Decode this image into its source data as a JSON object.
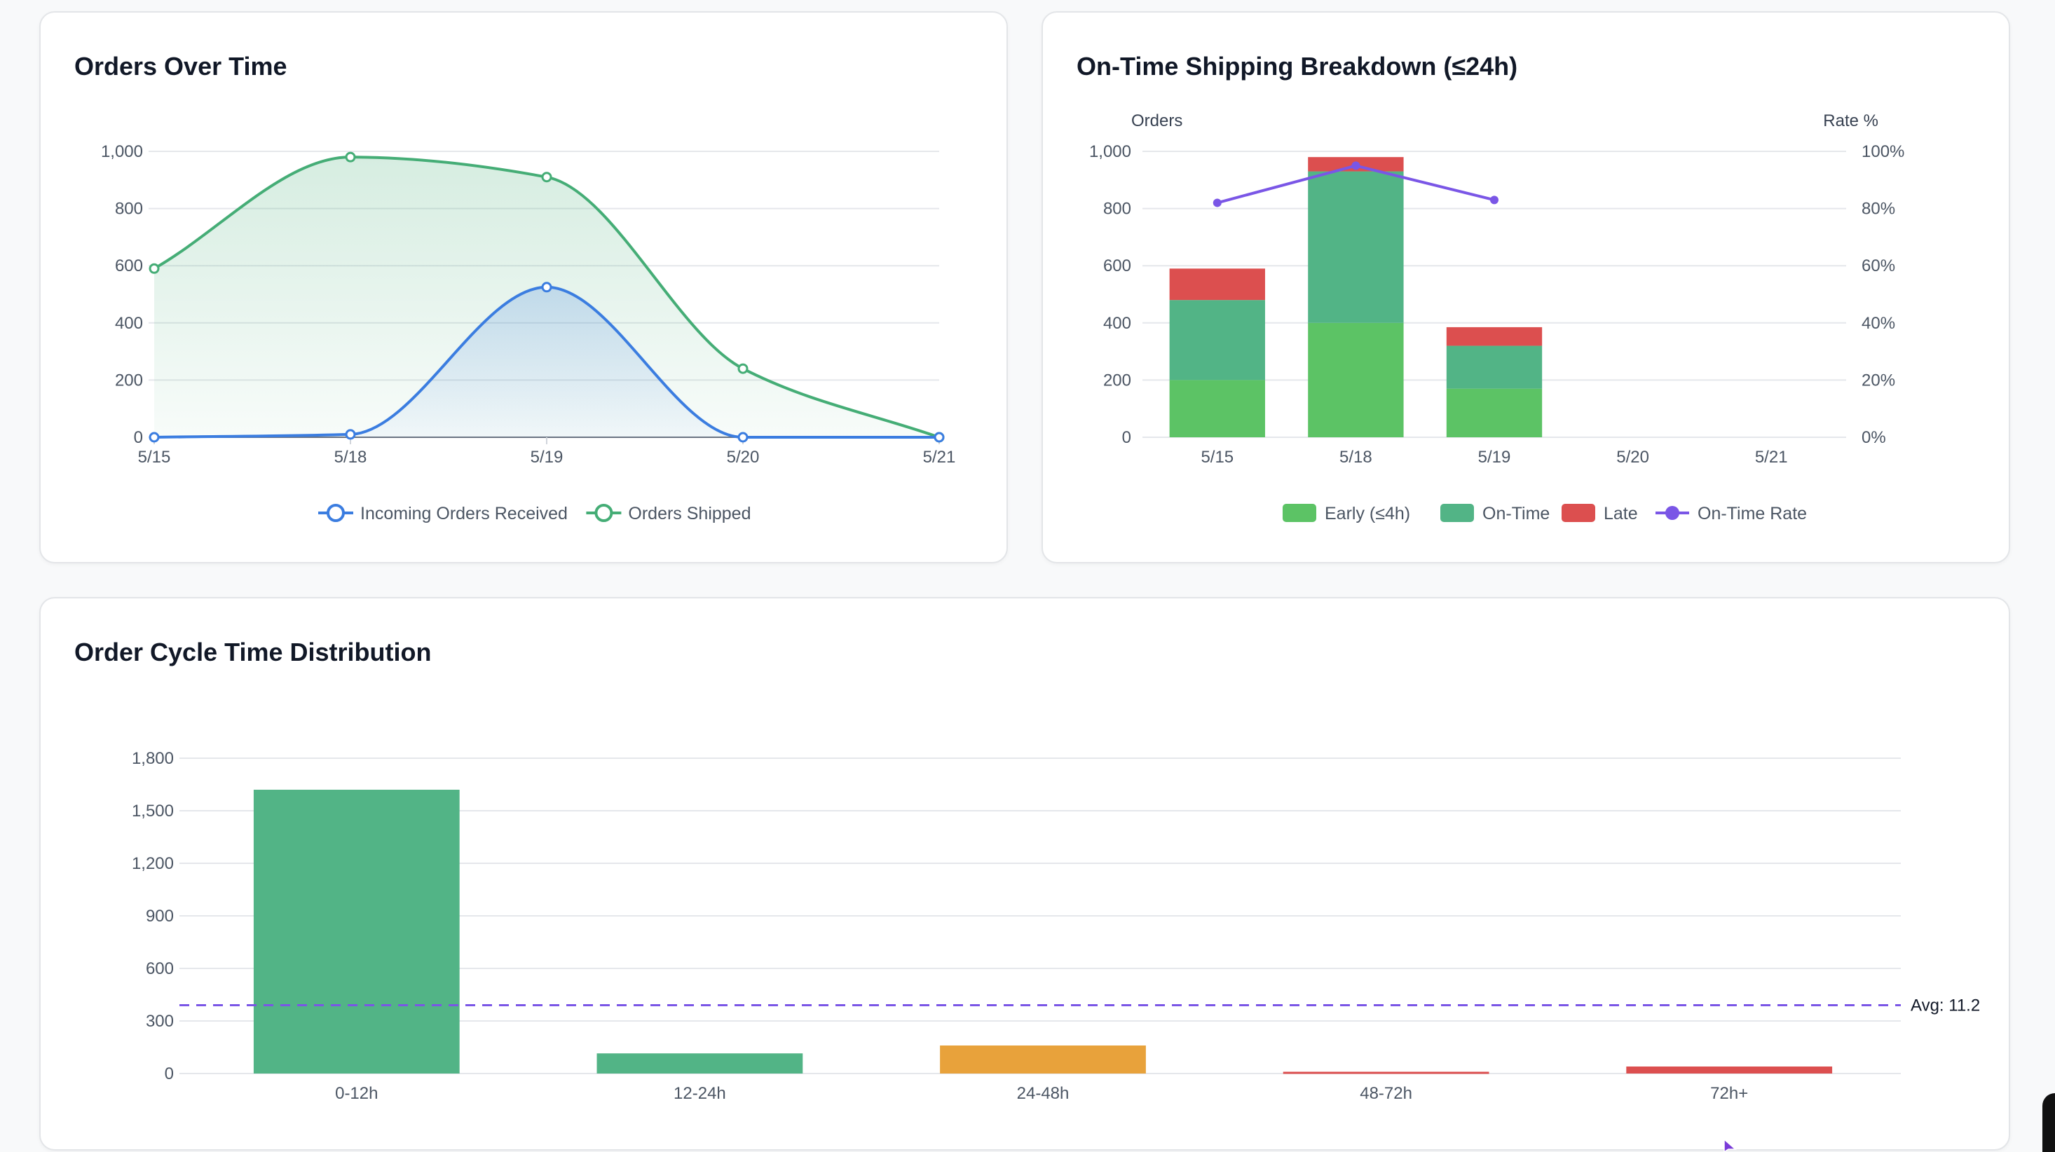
{
  "orders_chart": {
    "title": "Orders Over Time",
    "chart_data": {
      "type": "line",
      "x": [
        "5/15",
        "5/18",
        "5/19",
        "5/20",
        "5/21"
      ],
      "ylim": [
        0,
        1000
      ],
      "yticks": [
        "0",
        "200",
        "400",
        "600",
        "800",
        "1,000"
      ],
      "fill": true,
      "grid": true,
      "legend": "bottom",
      "series": [
        {
          "name": "Incoming Orders Received",
          "color": "#3b7de0",
          "values": [
            0,
            10,
            525,
            0,
            0
          ]
        },
        {
          "name": "Orders Shipped",
          "color": "#45ad76",
          "values": [
            590,
            980,
            910,
            240,
            0
          ]
        }
      ]
    }
  },
  "shipping_chart": {
    "title": "On-Time Shipping Breakdown (≤24h)",
    "chart_data": {
      "type": "bar",
      "stacked": true,
      "categories": [
        "5/15",
        "5/18",
        "5/19",
        "5/20",
        "5/21"
      ],
      "ylabel": "Orders",
      "y2label": "Rate %",
      "ylim": [
        0,
        1000
      ],
      "y2lim": [
        0,
        100
      ],
      "yticks": [
        "0",
        "200",
        "400",
        "600",
        "800",
        "1,000"
      ],
      "y2ticks": [
        "0%",
        "20%",
        "40%",
        "60%",
        "80%",
        "100%"
      ],
      "legend": "bottom",
      "series": [
        {
          "name": "Early (≤4h)",
          "color": "#5cc365",
          "values": [
            200,
            400,
            170,
            0,
            0
          ]
        },
        {
          "name": "On-Time",
          "color": "#52b486",
          "values": [
            280,
            530,
            150,
            0,
            0
          ]
        },
        {
          "name": "Late",
          "color": "#dc4f4f",
          "values": [
            110,
            50,
            65,
            0,
            0
          ]
        }
      ],
      "line_series": {
        "name": "On-Time Rate",
        "color": "#7a56e6",
        "values": [
          82,
          95,
          83,
          null,
          null
        ]
      }
    }
  },
  "cycle_chart": {
    "title": "Order Cycle Time Distribution",
    "chart_data": {
      "type": "bar",
      "categories": [
        "0-12h",
        "12-24h",
        "24-48h",
        "48-72h",
        "72h+"
      ],
      "values": [
        1620,
        115,
        160,
        10,
        40
      ],
      "colors": [
        "#52b486",
        "#52b486",
        "#e8a23b",
        "#dc4f4f",
        "#dc4f4f"
      ],
      "ylim": [
        0,
        1800
      ],
      "yticks": [
        "0",
        "300",
        "600",
        "900",
        "1,200",
        "1,500",
        "1,800"
      ],
      "grid": true,
      "average": {
        "value": 390,
        "label": "Avg: 11.2",
        "color": "#7a56e6"
      }
    }
  }
}
